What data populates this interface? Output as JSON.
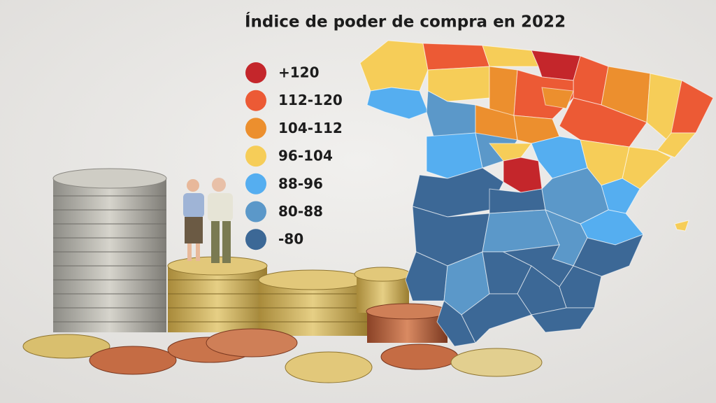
{
  "title": "Índice de poder de compra en 2022",
  "legend": [
    {
      "label": "+120",
      "color": "#c4262b"
    },
    {
      "label": "112-120",
      "color": "#ec5a35"
    },
    {
      "label": "104-112",
      "color": "#ec8f2e"
    },
    {
      "label": "96-104",
      "color": "#f6cd58"
    },
    {
      "label": "88-96",
      "color": "#55aef0"
    },
    {
      "label": "80-88",
      "color": "#5b98c9"
    },
    {
      "label": "-80",
      "color": "#3c6896"
    }
  ]
}
